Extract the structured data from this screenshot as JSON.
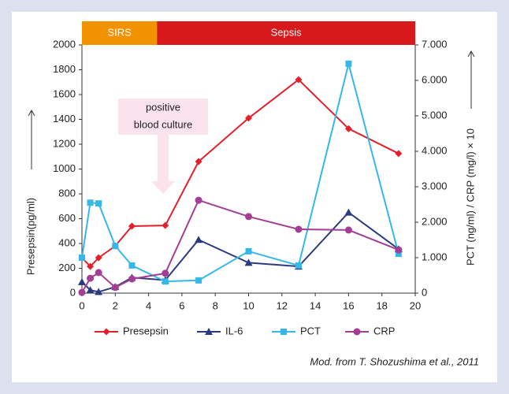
{
  "chart_data": {
    "type": "line",
    "phases": [
      {
        "label": "SIRS",
        "start": 0,
        "end": 4.5,
        "color": "#f39200"
      },
      {
        "label": "Sepsis",
        "start": 4.5,
        "end": 20,
        "color": "#d7191c"
      }
    ],
    "y_label": "Presepsin(pg/ml)",
    "y2_label": "PCT (ng/ml) / CRP (mg/l) × 10",
    "annotation": [
      "positive",
      "blood culture"
    ],
    "source": "Mod. from T. Shozushima et al., 2011",
    "x": [
      0,
      0.5,
      1,
      2,
      3,
      5,
      7,
      10,
      13,
      16,
      19
    ],
    "xlim": [
      0,
      20
    ],
    "xticks": [
      0,
      2,
      4,
      6,
      8,
      10,
      12,
      14,
      16,
      18,
      20
    ],
    "ylim": [
      0,
      2000
    ],
    "yticks": [
      0,
      200,
      400,
      600,
      800,
      1000,
      1200,
      1400,
      1600,
      1800,
      2000
    ],
    "y2lim": [
      0,
      7
    ],
    "y2ticks": [
      0,
      {
        "value": 1,
        "label": "1.000"
      },
      {
        "value": 2,
        "label": "2.000"
      },
      {
        "value": 3,
        "label": "3.000"
      },
      {
        "value": 4,
        "label": "4.000"
      },
      {
        "value": 5,
        "label": "5.000"
      },
      {
        "value": 6,
        "label": "6.000"
      },
      {
        "value": 7,
        "label": "7.000"
      }
    ],
    "series": [
      {
        "name": "Presepsin",
        "color": "#e3202a",
        "marker": "diamond",
        "values": [
          285,
          215,
          285,
          380,
          540,
          545,
          1060,
          1410,
          1720,
          1325,
          1125
        ]
      },
      {
        "name": "IL-6",
        "color": "#2b3a7e",
        "marker": "triangle",
        "values": [
          90,
          25,
          10,
          50,
          125,
          105,
          430,
          245,
          215,
          650,
          355
        ]
      },
      {
        "name": "PCT",
        "color": "#35b8e8",
        "marker": "square",
        "axis": "y2",
        "values": [
          1.0,
          2.55,
          2.53,
          1.33,
          0.78,
          0.33,
          0.36,
          1.18,
          0.78,
          6.47,
          1.11
        ]
      },
      {
        "name": "CRP",
        "color": "#a43e95",
        "marker": "circle",
        "axis": "y2",
        "values": [
          0.02,
          0.42,
          0.58,
          0.16,
          0.4,
          0.56,
          2.62,
          2.16,
          1.8,
          1.78,
          1.22
        ]
      }
    ]
  }
}
